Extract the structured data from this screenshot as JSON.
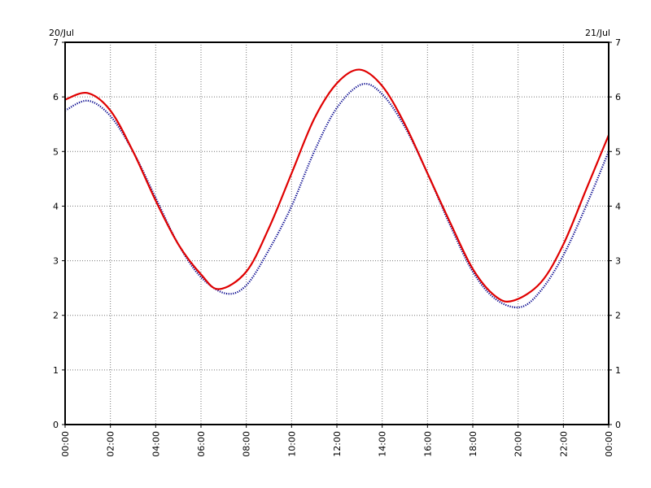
{
  "chart_data": {
    "type": "line",
    "date_labels": {
      "left": "20/Jul",
      "right": "21/Jul"
    },
    "x_ticks": [
      "00:00",
      "02:00",
      "04:00",
      "06:00",
      "08:00",
      "10:00",
      "12:00",
      "14:00",
      "16:00",
      "18:00",
      "20:00",
      "22:00",
      "00:00"
    ],
    "y_ticks": [
      "0",
      "1",
      "2",
      "3",
      "4",
      "5",
      "6",
      "7"
    ],
    "ylim": [
      0,
      7
    ],
    "xlim_hours": [
      0,
      24
    ],
    "grid": true,
    "series": [
      {
        "style": "solid",
        "color": "#e00000",
        "x": [
          0,
          1,
          2,
          3,
          4,
          5,
          6,
          6.8,
          8,
          9,
          10,
          11,
          12,
          13,
          14,
          15,
          16,
          17,
          18,
          19,
          19.8,
          21,
          22,
          23,
          24
        ],
        "y": [
          5.95,
          6.07,
          5.75,
          5.0,
          4.1,
          3.3,
          2.75,
          2.48,
          2.8,
          3.6,
          4.6,
          5.6,
          6.25,
          6.5,
          6.2,
          5.5,
          4.6,
          3.7,
          2.85,
          2.35,
          2.27,
          2.6,
          3.3,
          4.3,
          5.3
        ]
      },
      {
        "style": "dotted",
        "color": "#00008b",
        "x": [
          0,
          1,
          2,
          3,
          4,
          5,
          6,
          7.1,
          8,
          9,
          10,
          11,
          12,
          13.1,
          14,
          15,
          16,
          17,
          18,
          19,
          20.1,
          21,
          22,
          23,
          24
        ],
        "y": [
          5.75,
          5.93,
          5.65,
          5.0,
          4.15,
          3.3,
          2.7,
          2.4,
          2.55,
          3.2,
          4.0,
          5.0,
          5.8,
          6.23,
          6.05,
          5.45,
          4.6,
          3.65,
          2.8,
          2.3,
          2.15,
          2.45,
          3.1,
          4.0,
          5.0
        ]
      }
    ]
  }
}
